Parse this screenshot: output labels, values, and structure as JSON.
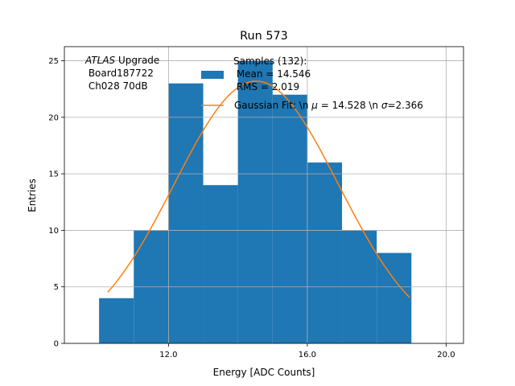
{
  "chart_data": {
    "type": "bar",
    "title": "Run 573",
    "xlabel": "Energy [ADC Counts]",
    "ylabel": "Entries",
    "xlim": [
      9.0,
      20.5
    ],
    "ylim": [
      0,
      26.25
    ],
    "grid": true,
    "x_ticks": [
      12.0,
      16.0,
      20.0
    ],
    "x_tick_labels": [
      "12.0",
      "16.0",
      "20.0"
    ],
    "y_ticks": [
      0,
      5,
      10,
      15,
      20,
      25
    ],
    "y_tick_labels": [
      "0",
      "5",
      "10",
      "15",
      "20",
      "25"
    ],
    "bins": [
      {
        "start": 10,
        "end": 11,
        "count": 4
      },
      {
        "start": 11,
        "end": 12,
        "count": 10
      },
      {
        "start": 12,
        "end": 13,
        "count": 23
      },
      {
        "start": 13,
        "end": 14,
        "count": 14
      },
      {
        "start": 14,
        "end": 15,
        "count": 25
      },
      {
        "start": 15,
        "end": 16,
        "count": 22
      },
      {
        "start": 16,
        "end": 17,
        "count": 16
      },
      {
        "start": 17,
        "end": 18,
        "count": 10
      },
      {
        "start": 18,
        "end": 19,
        "count": 8
      }
    ],
    "fit": {
      "type": "gaussian",
      "mu": 14.528,
      "sigma": 2.366,
      "x_range": [
        10.25,
        18.95
      ],
      "amplitude": 23.2
    },
    "colors": {
      "bars": "#1f77b4",
      "fit": "#ff7f0e",
      "grid": "#b0b0b0"
    },
    "legend": {
      "location": "top-right",
      "entries": [
        {
          "name": "Samples (132):",
          "line2": " Mean = 14.546",
          "line3": " RMS = 2.019"
        },
        {
          "name": "Gaussian Fit: \\n $\\mu$ = 14.528 \\n $\\sigma$=2.366"
        }
      ]
    },
    "annotation": {
      "atlas": "ATLAS",
      "rest": " Upgrade",
      "line2": " Board187722",
      "line3": " Ch028 70dB"
    }
  },
  "legend_display": {
    "fit_prefix": "Gaussian Fit: \\n ",
    "mu_symbol": "μ",
    "mu_text": " = 14.528 \\n ",
    "sigma_symbol": "σ",
    "sigma_text": "=2.366"
  }
}
